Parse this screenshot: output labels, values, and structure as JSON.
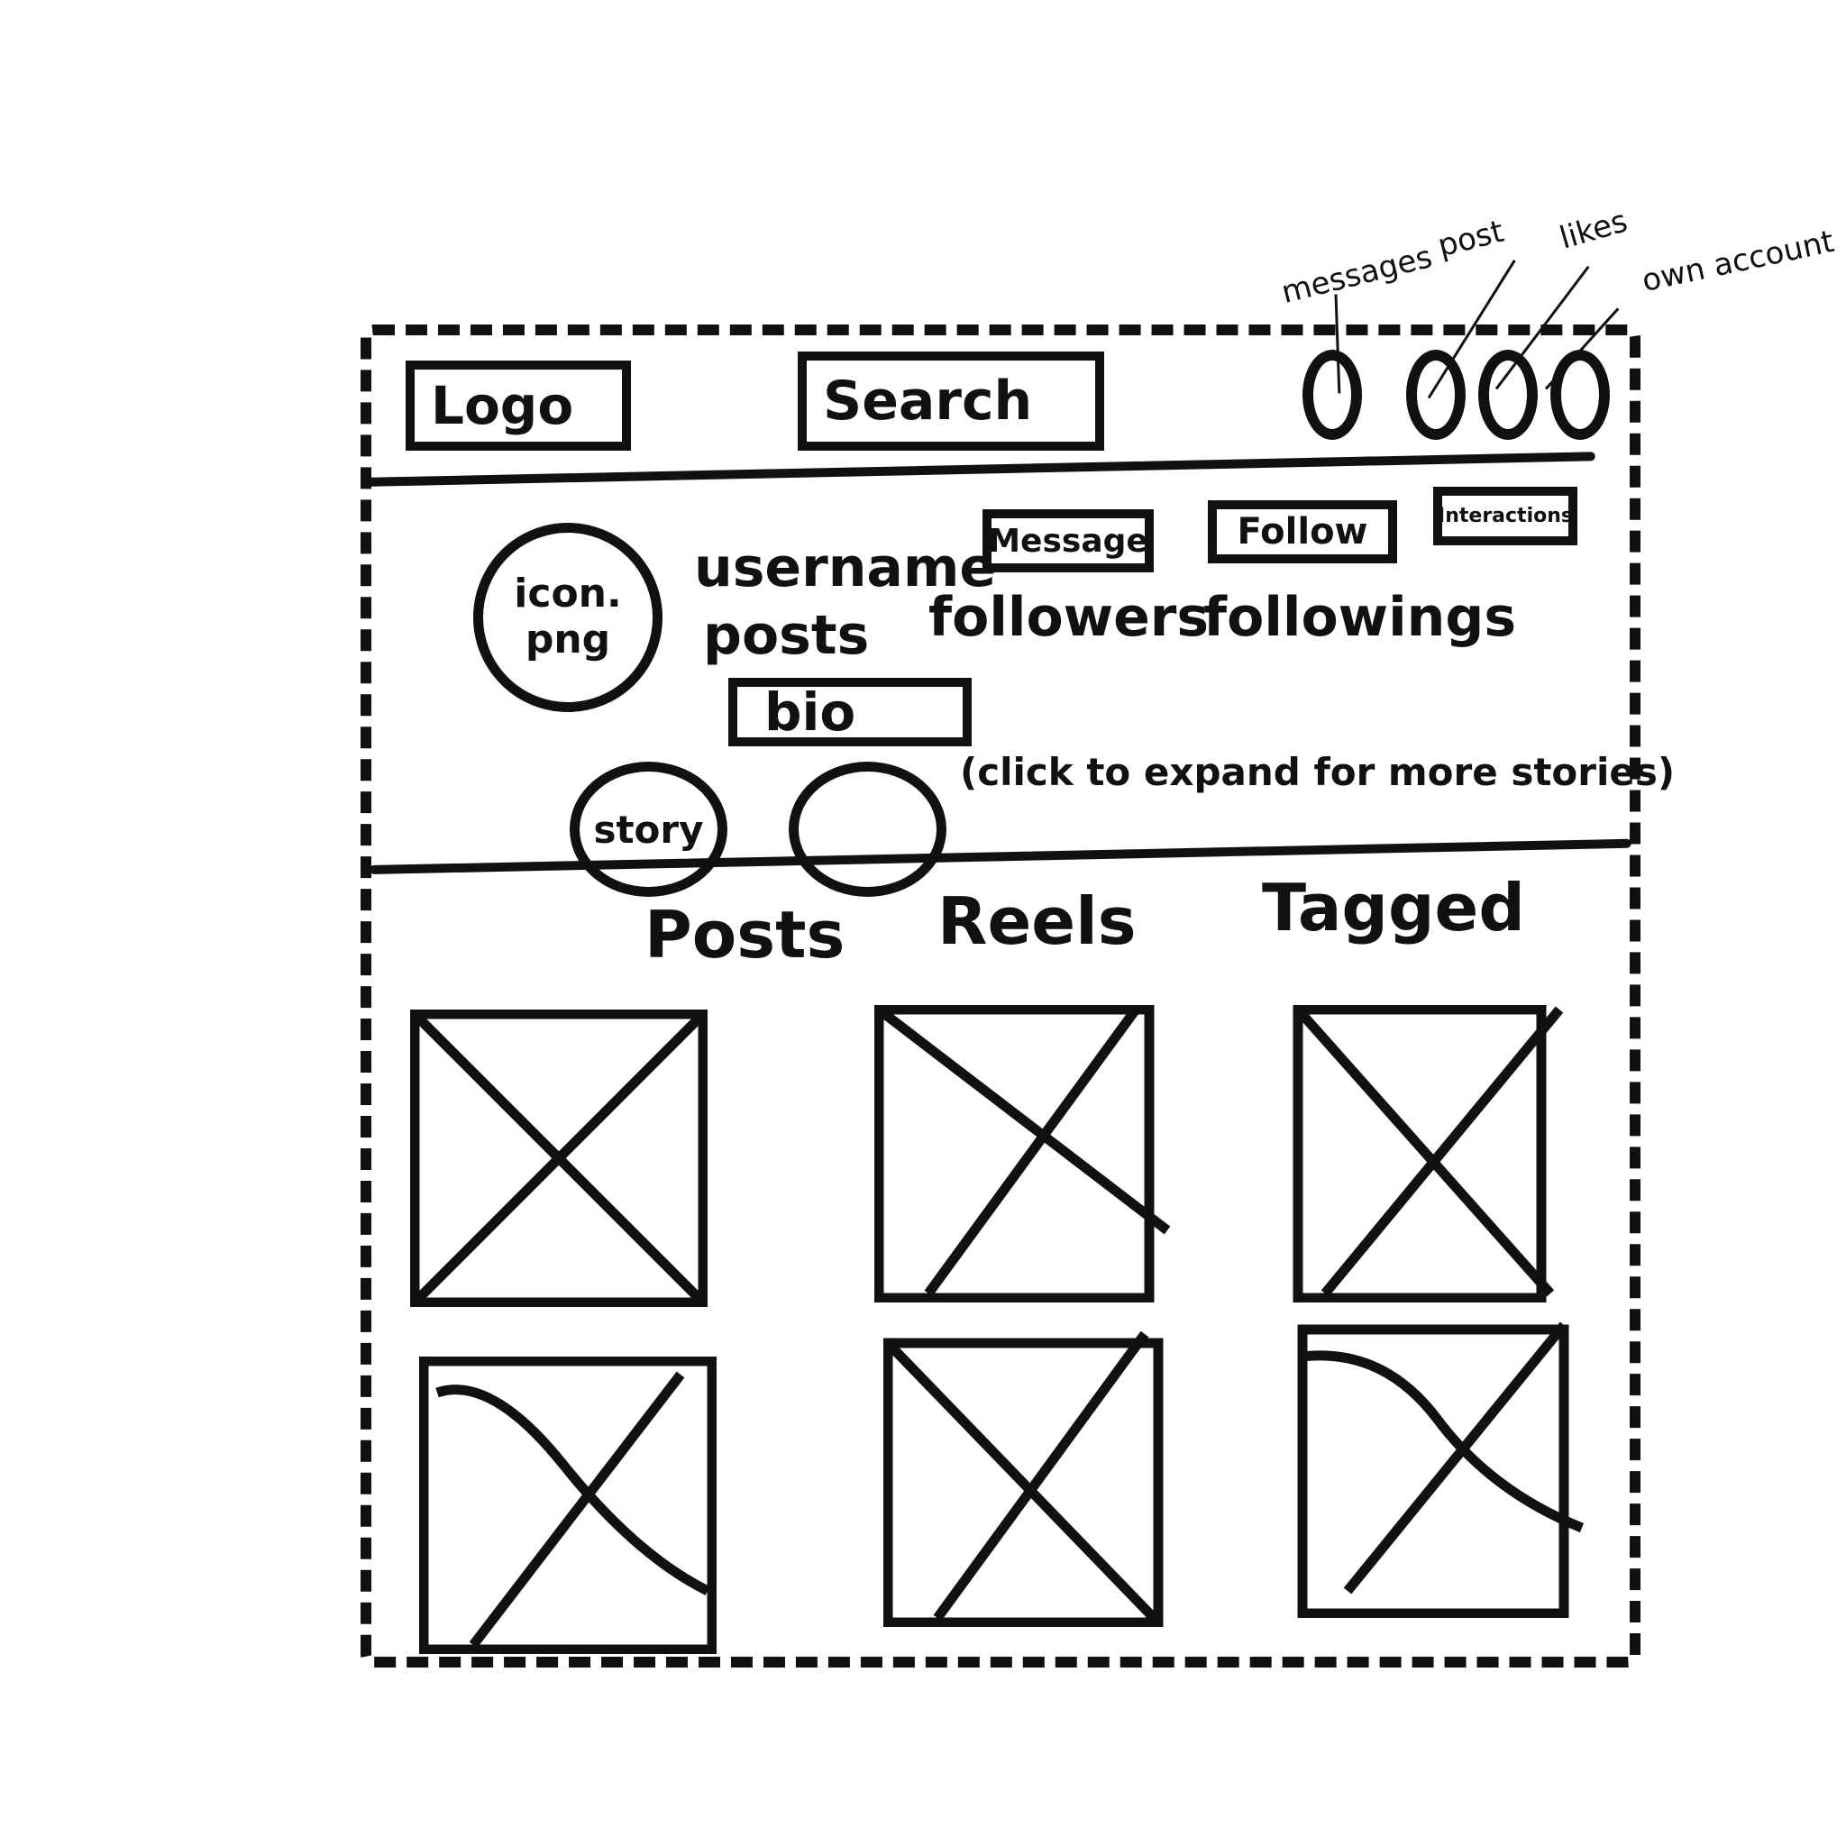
{
  "header": {
    "logo_label": "Logo",
    "search_label": "Search",
    "nav_icons": [
      {
        "name": "messages-icon",
        "annotation": "messages"
      },
      {
        "name": "post-icon",
        "annotation": "post"
      },
      {
        "name": "likes-icon",
        "annotation": "likes"
      },
      {
        "name": "own-account-icon",
        "annotation": "own account"
      }
    ]
  },
  "profile": {
    "avatar_label": "icon. png",
    "username": "username",
    "stats": {
      "posts": "posts",
      "followers": "followers",
      "followings": "followings"
    },
    "actions": {
      "message": "Message",
      "follow": "Follow",
      "interactions": "Interactions"
    },
    "bio": "bio",
    "stories": {
      "story_label": "story",
      "hint": "(click to expand for more stories)"
    }
  },
  "tabs": [
    "Posts",
    "Reels",
    "Tagged"
  ],
  "grid": {
    "tile_count": 6
  }
}
